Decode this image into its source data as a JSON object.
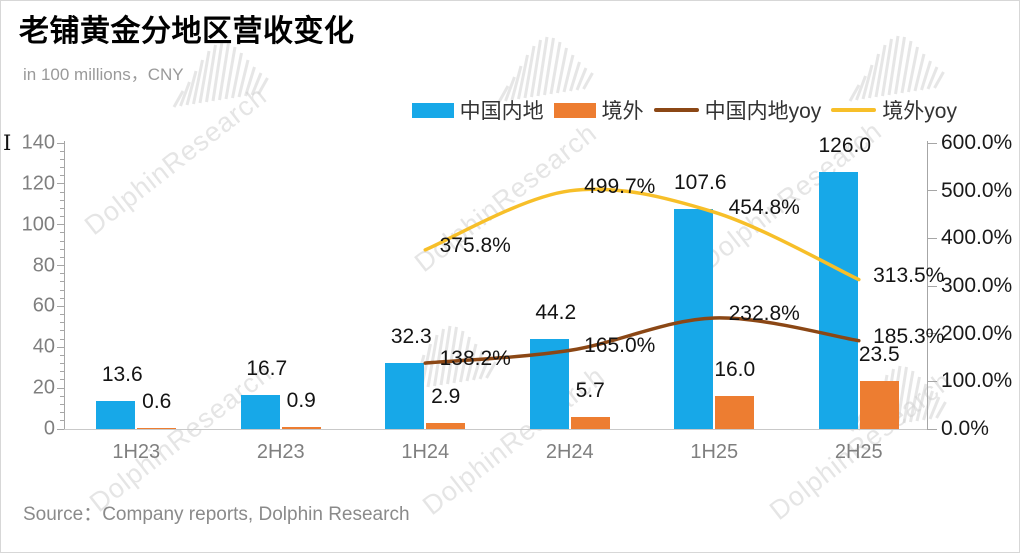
{
  "title": "老铺黄金分地区营收变化",
  "subtitle": "in 100 millions，CNY",
  "source": "Source：Company reports, Dolphin Research",
  "cursor_artifact": "I",
  "watermark": {
    "text": "DolphinResearch"
  },
  "colors": {
    "mainland_bar": "#17a8e8",
    "overseas_bar": "#ed7d31",
    "mainland_yoy_line": "#8b4715",
    "overseas_yoy_line": "#f7bf29",
    "axis": "#a6a6a6",
    "label_gray": "#7f7f7f"
  },
  "legend": [
    {
      "label": "中国内地",
      "type": "bar",
      "color": "#17a8e8"
    },
    {
      "label": "境外",
      "type": "bar",
      "color": "#ed7d31"
    },
    {
      "label": "中国内地yoy",
      "type": "line",
      "color": "#8b4715"
    },
    {
      "label": "境外yoy",
      "type": "line",
      "color": "#f7bf29"
    }
  ],
  "chart_data": {
    "type": "bar",
    "subtype": "combo bar + smooth line, dual axis",
    "categories": [
      "1H23",
      "2H23",
      "1H24",
      "2H24",
      "1H25",
      "2H25"
    ],
    "series": [
      {
        "name": "中国内地",
        "type": "bar",
        "axis": "left",
        "color": "#17a8e8",
        "values": [
          13.6,
          16.7,
          32.3,
          44.2,
          107.6,
          126.0
        ],
        "labels": [
          "13.6",
          "16.7",
          "32.3",
          "44.2",
          "107.6",
          "126.0"
        ]
      },
      {
        "name": "境外",
        "type": "bar",
        "axis": "left",
        "color": "#ed7d31",
        "values": [
          0.6,
          0.9,
          2.9,
          5.7,
          16.0,
          23.5
        ],
        "labels": [
          "0.6",
          "0.9",
          "2.9",
          "5.7",
          "16.0",
          "23.5"
        ]
      },
      {
        "name": "中国内地yoy",
        "type": "line",
        "axis": "right",
        "color": "#8b4715",
        "values": [
          null,
          null,
          138.2,
          165.0,
          232.8,
          185.3
        ],
        "labels": [
          null,
          null,
          "138.2%",
          "165.0%",
          "232.8%",
          "185.3%"
        ]
      },
      {
        "name": "境外yoy",
        "type": "line",
        "axis": "right",
        "color": "#f7bf29",
        "values": [
          null,
          null,
          375.8,
          499.7,
          454.8,
          313.5
        ],
        "labels": [
          null,
          null,
          "375.8%",
          "499.7%",
          "454.8%",
          "313.5%"
        ]
      }
    ],
    "left_axis": {
      "min": 0,
      "max": 140,
      "tick_step": 20,
      "minor_step": 4,
      "ticks": [
        "0",
        "20",
        "40",
        "60",
        "80",
        "100",
        "120",
        "140"
      ]
    },
    "right_axis": {
      "min": 0,
      "max": 600,
      "tick_step": 100,
      "ticks": [
        "0.0%",
        "100.0%",
        "200.0%",
        "300.0%",
        "400.0%",
        "500.0%",
        "600.0%"
      ]
    },
    "grid": false,
    "legend_position": "top-right"
  }
}
